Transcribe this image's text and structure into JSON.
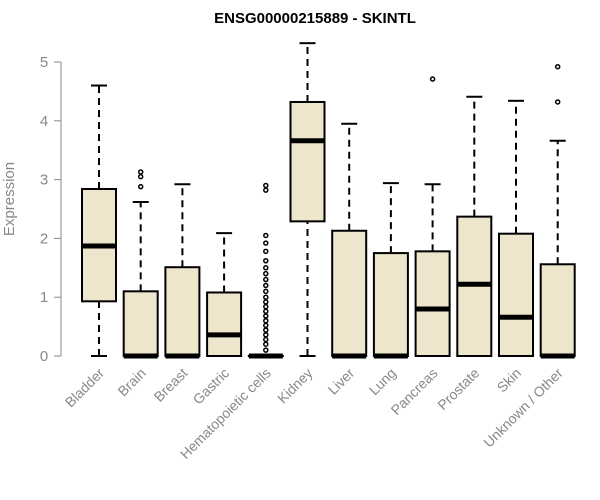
{
  "chart_data": {
    "type": "box",
    "title": "ENSG00000215889 - SKINTL",
    "xlabel": "",
    "ylabel": "Expression",
    "ylim": [
      0,
      5.3
    ],
    "yticks": [
      0,
      1,
      2,
      3,
      4,
      5
    ],
    "grid": false,
    "legend": "none",
    "colors": {
      "box_fill": "#ede6cc",
      "box_stroke": "#000000",
      "axis": "#888888"
    },
    "categories": [
      "Bladder",
      "Brain",
      "Breast",
      "Gastric",
      "Hematopoietic cells",
      "Kidney",
      "Liver",
      "Lung",
      "Pancreas",
      "Prostate",
      "Skin",
      "Unknown / Other"
    ],
    "boxes": [
      {
        "category": "Bladder",
        "whisker_low": 0,
        "q1": 0.93,
        "median": 1.87,
        "q3": 2.84,
        "whisker_high": 4.6,
        "outliers": []
      },
      {
        "category": "Brain",
        "whisker_low": 0,
        "q1": 0,
        "median": 0,
        "q3": 1.1,
        "whisker_high": 2.62,
        "outliers": [
          2.88,
          3.05,
          3.13
        ]
      },
      {
        "category": "Breast",
        "whisker_low": 0,
        "q1": 0,
        "median": 0,
        "q3": 1.51,
        "whisker_high": 2.92,
        "outliers": []
      },
      {
        "category": "Gastric",
        "whisker_low": 0,
        "q1": 0,
        "median": 0.36,
        "q3": 1.08,
        "whisker_high": 2.09,
        "outliers": []
      },
      {
        "category": "Hematopoietic cells",
        "whisker_low": 0,
        "q1": 0,
        "median": 0,
        "q3": 0,
        "whisker_high": 0,
        "outliers": [
          0.1,
          0.2,
          0.28,
          0.36,
          0.44,
          0.52,
          0.6,
          0.68,
          0.76,
          0.84,
          0.92,
          1.0,
          1.1,
          1.2,
          1.3,
          1.4,
          1.5,
          1.62,
          1.78,
          1.92,
          2.05,
          2.82,
          2.9
        ]
      },
      {
        "category": "Kidney",
        "whisker_low": 0,
        "q1": 2.29,
        "median": 3.66,
        "q3": 4.32,
        "whisker_high": 5.32,
        "outliers": []
      },
      {
        "category": "Liver",
        "whisker_low": 0,
        "q1": 0,
        "median": 0,
        "q3": 2.13,
        "whisker_high": 3.95,
        "outliers": []
      },
      {
        "category": "Lung",
        "whisker_low": 0,
        "q1": 0,
        "median": 0,
        "q3": 1.75,
        "whisker_high": 2.94,
        "outliers": []
      },
      {
        "category": "Pancreas",
        "whisker_low": 0,
        "q1": 0,
        "median": 0.8,
        "q3": 1.78,
        "whisker_high": 2.92,
        "outliers": [
          4.71
        ]
      },
      {
        "category": "Prostate",
        "whisker_low": 0,
        "q1": 0,
        "median": 1.22,
        "q3": 2.37,
        "whisker_high": 4.41,
        "outliers": []
      },
      {
        "category": "Skin",
        "whisker_low": 0,
        "q1": 0,
        "median": 0.66,
        "q3": 2.08,
        "whisker_high": 4.34,
        "outliers": []
      },
      {
        "category": "Unknown / Other",
        "whisker_low": 0,
        "q1": 0,
        "median": 0,
        "q3": 1.56,
        "whisker_high": 3.66,
        "outliers": [
          4.32,
          4.92
        ]
      }
    ]
  }
}
